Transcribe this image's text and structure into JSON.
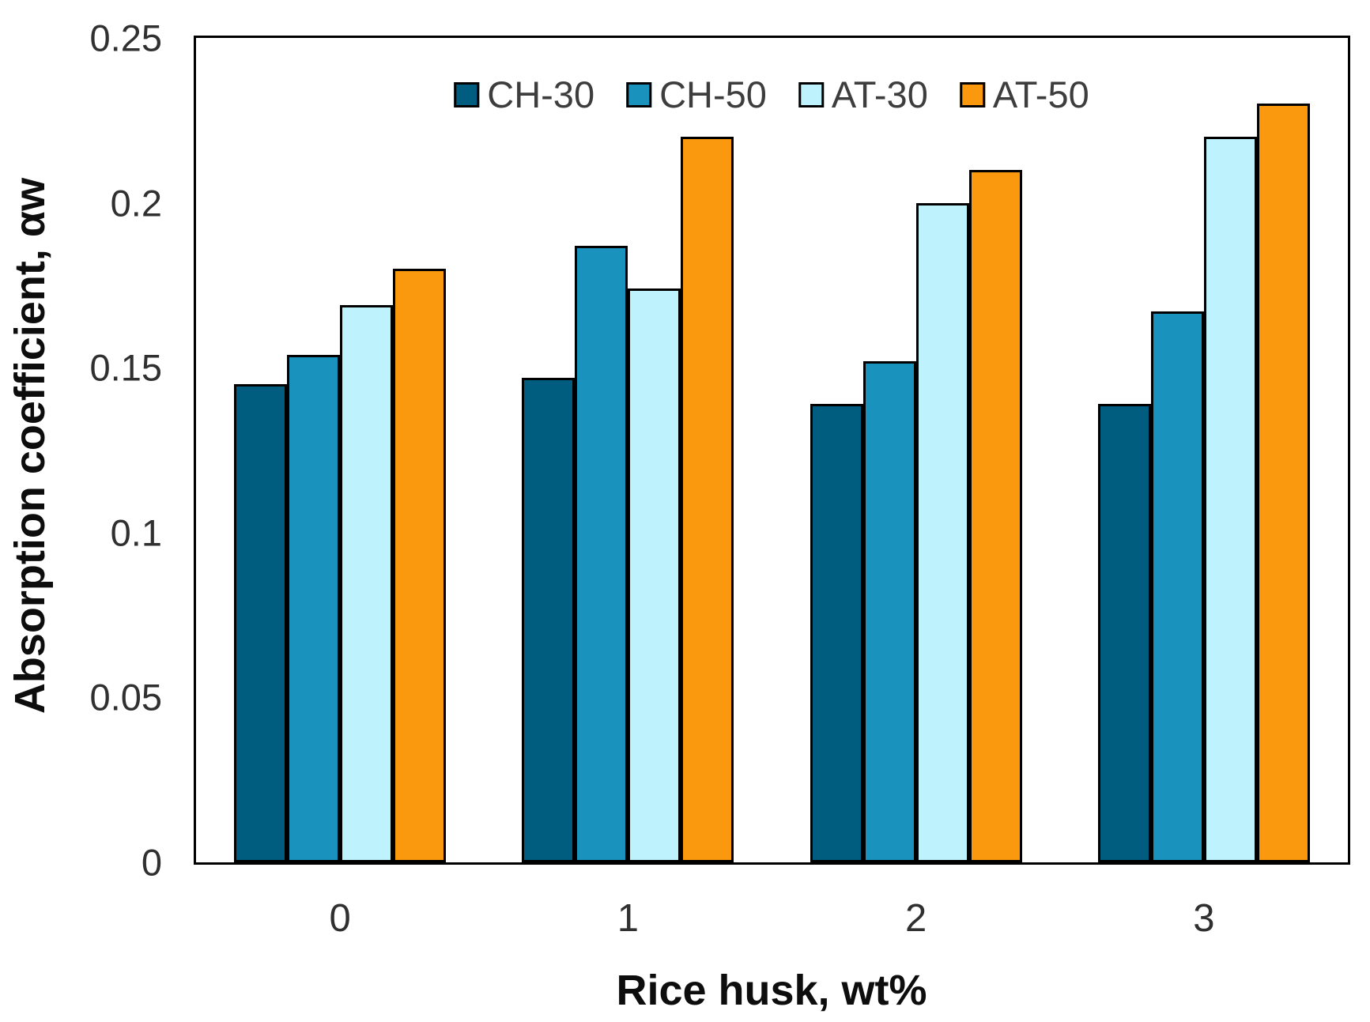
{
  "chart_data": {
    "type": "bar",
    "title": "",
    "xlabel": "Rice husk, wt%",
    "ylabel": "Absorption coefficient, αw",
    "categories": [
      "0",
      "1",
      "2",
      "3"
    ],
    "series": [
      {
        "name": "CH-30",
        "color": "#005D80",
        "values": [
          0.145,
          0.147,
          0.139,
          0.139
        ]
      },
      {
        "name": "CH-50",
        "color": "#1993BD",
        "values": [
          0.154,
          0.187,
          0.152,
          0.167
        ]
      },
      {
        "name": "AT-30",
        "color": "#BEF3FD",
        "values": [
          0.169,
          0.174,
          0.2,
          0.22
        ]
      },
      {
        "name": "AT-50",
        "color": "#FB990E",
        "values": [
          0.18,
          0.22,
          0.21,
          0.23
        ]
      }
    ],
    "ylim": [
      0,
      0.25
    ],
    "yticks": [
      0,
      0.05,
      0.1,
      0.15,
      0.2,
      0.25
    ],
    "ytick_labels": [
      "0",
      "0.05",
      "0.1",
      "0.15",
      "0.2",
      "0.25"
    ],
    "grid": false,
    "legend_position": "inside-top-center",
    "bar_border_color": "#000000",
    "axis_frame_color": "#000000",
    "tick_text_color": "#303030",
    "legend_text_color": "#3d3d3d"
  }
}
